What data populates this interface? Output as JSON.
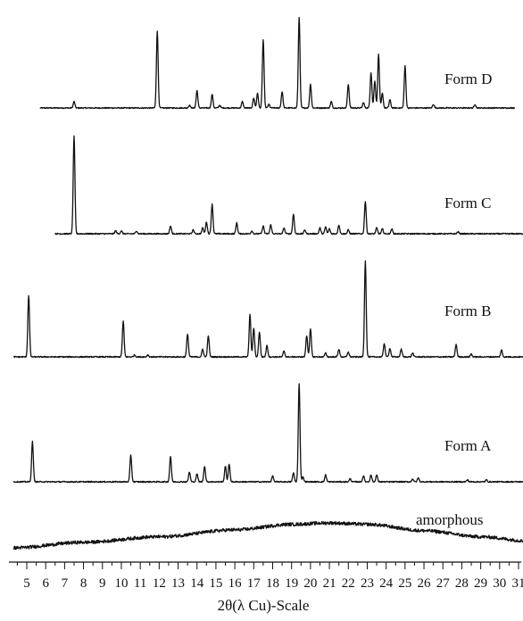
{
  "chart_data": {
    "type": "line",
    "xlabel": "2θ(λ Cu)-Scale",
    "xlim": [
      4.3,
      31.8
    ],
    "x_ticks": [
      5,
      6,
      7,
      8,
      9,
      10,
      11,
      12,
      13,
      14,
      15,
      16,
      17,
      18,
      19,
      20,
      21,
      22,
      23,
      24,
      25,
      26,
      27,
      28,
      29,
      30,
      31
    ],
    "grid": false,
    "y_axis_shown": false,
    "series": [
      {
        "name": "Form D",
        "x_start": 5.7,
        "x_end": 30.8,
        "baseline": 0.0,
        "peaks": [
          {
            "x": 7.5,
            "intensity": 0.07
          },
          {
            "x": 11.9,
            "intensity": 0.85
          },
          {
            "x": 13.6,
            "intensity": 0.03
          },
          {
            "x": 14.0,
            "intensity": 0.19
          },
          {
            "x": 14.8,
            "intensity": 0.15
          },
          {
            "x": 15.2,
            "intensity": 0.03
          },
          {
            "x": 16.4,
            "intensity": 0.07
          },
          {
            "x": 17.0,
            "intensity": 0.11
          },
          {
            "x": 17.2,
            "intensity": 0.16
          },
          {
            "x": 17.5,
            "intensity": 0.75
          },
          {
            "x": 17.8,
            "intensity": 0.04
          },
          {
            "x": 18.5,
            "intensity": 0.18
          },
          {
            "x": 19.4,
            "intensity": 1.0
          },
          {
            "x": 20.0,
            "intensity": 0.26
          },
          {
            "x": 21.1,
            "intensity": 0.07
          },
          {
            "x": 22.0,
            "intensity": 0.26
          },
          {
            "x": 22.8,
            "intensity": 0.06
          },
          {
            "x": 23.2,
            "intensity": 0.39
          },
          {
            "x": 23.4,
            "intensity": 0.3
          },
          {
            "x": 23.6,
            "intensity": 0.59
          },
          {
            "x": 23.8,
            "intensity": 0.16
          },
          {
            "x": 24.2,
            "intensity": 0.09
          },
          {
            "x": 25.0,
            "intensity": 0.46
          },
          {
            "x": 26.5,
            "intensity": 0.04
          },
          {
            "x": 28.7,
            "intensity": 0.04
          }
        ]
      },
      {
        "name": "Form C",
        "x_start": 6.5,
        "x_end": 31.5,
        "baseline": 0.0,
        "peaks": [
          {
            "x": 7.5,
            "intensity": 1.0
          },
          {
            "x": 9.7,
            "intensity": 0.03
          },
          {
            "x": 10.0,
            "intensity": 0.03
          },
          {
            "x": 10.8,
            "intensity": 0.03
          },
          {
            "x": 12.6,
            "intensity": 0.08
          },
          {
            "x": 13.8,
            "intensity": 0.04
          },
          {
            "x": 14.3,
            "intensity": 0.06
          },
          {
            "x": 14.5,
            "intensity": 0.12
          },
          {
            "x": 14.8,
            "intensity": 0.3
          },
          {
            "x": 16.1,
            "intensity": 0.11
          },
          {
            "x": 16.9,
            "intensity": 0.03
          },
          {
            "x": 17.5,
            "intensity": 0.08
          },
          {
            "x": 17.9,
            "intensity": 0.09
          },
          {
            "x": 18.6,
            "intensity": 0.06
          },
          {
            "x": 19.1,
            "intensity": 0.2
          },
          {
            "x": 19.7,
            "intensity": 0.04
          },
          {
            "x": 20.5,
            "intensity": 0.06
          },
          {
            "x": 20.8,
            "intensity": 0.07
          },
          {
            "x": 21.0,
            "intensity": 0.05
          },
          {
            "x": 21.5,
            "intensity": 0.09
          },
          {
            "x": 22.0,
            "intensity": 0.04
          },
          {
            "x": 22.9,
            "intensity": 0.33
          },
          {
            "x": 23.5,
            "intensity": 0.06
          },
          {
            "x": 23.8,
            "intensity": 0.05
          },
          {
            "x": 24.3,
            "intensity": 0.05
          },
          {
            "x": 27.8,
            "intensity": 0.02
          }
        ]
      },
      {
        "name": "Form B",
        "x_start": 4.3,
        "x_end": 31.5,
        "baseline": 0.0,
        "peaks": [
          {
            "x": 5.1,
            "intensity": 0.64
          },
          {
            "x": 10.1,
            "intensity": 0.37
          },
          {
            "x": 10.7,
            "intensity": 0.02
          },
          {
            "x": 11.4,
            "intensity": 0.02
          },
          {
            "x": 13.5,
            "intensity": 0.24
          },
          {
            "x": 14.3,
            "intensity": 0.08
          },
          {
            "x": 14.6,
            "intensity": 0.22
          },
          {
            "x": 16.8,
            "intensity": 0.44
          },
          {
            "x": 17.0,
            "intensity": 0.3
          },
          {
            "x": 17.3,
            "intensity": 0.26
          },
          {
            "x": 17.7,
            "intensity": 0.12
          },
          {
            "x": 18.6,
            "intensity": 0.06
          },
          {
            "x": 19.8,
            "intensity": 0.22
          },
          {
            "x": 20.0,
            "intensity": 0.29
          },
          {
            "x": 20.8,
            "intensity": 0.04
          },
          {
            "x": 21.5,
            "intensity": 0.08
          },
          {
            "x": 22.0,
            "intensity": 0.05
          },
          {
            "x": 22.9,
            "intensity": 1.0
          },
          {
            "x": 23.9,
            "intensity": 0.14
          },
          {
            "x": 24.2,
            "intensity": 0.09
          },
          {
            "x": 24.8,
            "intensity": 0.08
          },
          {
            "x": 25.4,
            "intensity": 0.04
          },
          {
            "x": 27.7,
            "intensity": 0.13
          },
          {
            "x": 28.5,
            "intensity": 0.03
          },
          {
            "x": 30.1,
            "intensity": 0.07
          }
        ]
      },
      {
        "name": "Form A",
        "x_start": 4.3,
        "x_end": 31.5,
        "baseline": 0.0,
        "peaks": [
          {
            "x": 5.3,
            "intensity": 0.41
          },
          {
            "x": 10.5,
            "intensity": 0.27
          },
          {
            "x": 12.6,
            "intensity": 0.26
          },
          {
            "x": 13.6,
            "intensity": 0.1
          },
          {
            "x": 14.0,
            "intensity": 0.08
          },
          {
            "x": 14.4,
            "intensity": 0.16
          },
          {
            "x": 15.5,
            "intensity": 0.16
          },
          {
            "x": 15.7,
            "intensity": 0.18
          },
          {
            "x": 18.0,
            "intensity": 0.06
          },
          {
            "x": 19.1,
            "intensity": 0.09
          },
          {
            "x": 19.4,
            "intensity": 1.0
          },
          {
            "x": 19.6,
            "intensity": 0.05
          },
          {
            "x": 20.8,
            "intensity": 0.07
          },
          {
            "x": 22.1,
            "intensity": 0.03
          },
          {
            "x": 22.8,
            "intensity": 0.06
          },
          {
            "x": 23.2,
            "intensity": 0.07
          },
          {
            "x": 23.5,
            "intensity": 0.07
          },
          {
            "x": 25.4,
            "intensity": 0.03
          },
          {
            "x": 25.7,
            "intensity": 0.04
          },
          {
            "x": 28.3,
            "intensity": 0.02
          },
          {
            "x": 29.3,
            "intensity": 0.02
          }
        ]
      },
      {
        "name": "amorphous",
        "x_start": 4.3,
        "x_end": 31.5,
        "halo": {
          "x": [
            4.3,
            8,
            12,
            16,
            19,
            21,
            23,
            26,
            29,
            31.5
          ],
          "y": [
            0,
            0.2,
            0.4,
            0.65,
            0.85,
            0.9,
            0.85,
            0.62,
            0.4,
            0.25
          ]
        }
      }
    ]
  }
}
